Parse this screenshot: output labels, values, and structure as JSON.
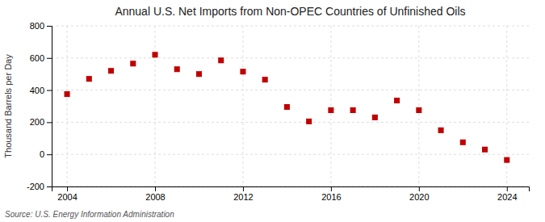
{
  "chart_data": {
    "type": "scatter",
    "title": "Annual U.S. Net Imports from Non-OPEC Countries of Unfinished Oils",
    "ylabel": "Thousand Barrels per Day",
    "annotations": [
      "Source: U.S. Energy Information Administration"
    ],
    "x": [
      2004,
      2005,
      2006,
      2007,
      2008,
      2009,
      2010,
      2011,
      2012,
      2013,
      2014,
      2015,
      2016,
      2017,
      2018,
      2019,
      2020,
      2021,
      2022,
      2023,
      2024
    ],
    "values": [
      375,
      470,
      520,
      565,
      620,
      530,
      500,
      585,
      515,
      465,
      295,
      205,
      275,
      275,
      230,
      335,
      275,
      150,
      75,
      30,
      -35
    ],
    "xlim": [
      2003.3,
      2025.0
    ],
    "xticks": [
      2004,
      2008,
      2012,
      2016,
      2020,
      2024
    ],
    "ylim": [
      -200,
      800
    ],
    "yticks": [
      -200,
      0,
      200,
      400,
      600,
      800
    ],
    "color": "#c00000",
    "marker": "square",
    "grid": true
  }
}
